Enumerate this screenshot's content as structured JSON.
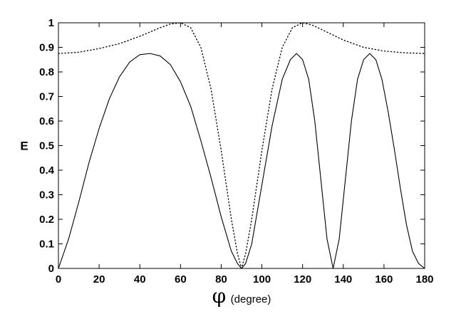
{
  "chart_data": {
    "type": "line",
    "title": "",
    "xlabel": "φ",
    "xlabel_suffix": "(degree)",
    "ylabel": "E",
    "xlim": [
      0,
      180
    ],
    "ylim": [
      0,
      1
    ],
    "xticks": [
      0,
      20,
      40,
      60,
      80,
      100,
      120,
      140,
      160,
      180
    ],
    "xtick_labels": [
      "0",
      "20",
      "40",
      "60",
      "80",
      "100",
      "120",
      "140",
      "160",
      "180"
    ],
    "yticks": [
      0,
      0.1,
      0.2,
      0.3,
      0.4,
      0.5,
      0.6,
      0.7,
      0.8,
      0.9,
      1
    ],
    "ytick_labels": [
      "0",
      "0.1",
      "0.2",
      "0.3",
      "0.4",
      "0.5",
      "0.6",
      "0.7",
      "0.8",
      "0.9",
      "1"
    ],
    "grid": false,
    "series": [
      {
        "style": "solid",
        "color": "#000000",
        "x": [
          0,
          5,
          10,
          15,
          20,
          25,
          30,
          35,
          40,
          45,
          50,
          55,
          60,
          65,
          70,
          75,
          80,
          85,
          88,
          90,
          92,
          95,
          100,
          105,
          110,
          114,
          117,
          120,
          123,
          126,
          129,
          132,
          135,
          138,
          141,
          144,
          147,
          150,
          153,
          156,
          159,
          162,
          165,
          168,
          171,
          174,
          177,
          180
        ],
        "y": [
          0.0,
          0.12,
          0.27,
          0.43,
          0.57,
          0.69,
          0.78,
          0.84,
          0.87,
          0.875,
          0.865,
          0.83,
          0.76,
          0.66,
          0.52,
          0.37,
          0.21,
          0.07,
          0.02,
          0.0,
          0.02,
          0.1,
          0.34,
          0.58,
          0.77,
          0.85,
          0.875,
          0.85,
          0.77,
          0.6,
          0.36,
          0.12,
          0.0,
          0.12,
          0.36,
          0.6,
          0.77,
          0.85,
          0.875,
          0.85,
          0.77,
          0.64,
          0.49,
          0.33,
          0.18,
          0.07,
          0.02,
          0.0
        ]
      },
      {
        "style": "dotted",
        "color": "#000000",
        "x": [
          0,
          10,
          20,
          30,
          40,
          50,
          55,
          60,
          65,
          70,
          75,
          80,
          85,
          88,
          90,
          92,
          95,
          100,
          105,
          110,
          115,
          120,
          125,
          130,
          140,
          150,
          160,
          170,
          180
        ],
        "y": [
          0.875,
          0.88,
          0.895,
          0.915,
          0.945,
          0.98,
          0.995,
          1.0,
          0.98,
          0.9,
          0.73,
          0.48,
          0.2,
          0.06,
          0.0,
          0.06,
          0.2,
          0.48,
          0.73,
          0.9,
          0.98,
          1.0,
          0.99,
          0.97,
          0.93,
          0.9,
          0.885,
          0.878,
          0.875
        ]
      }
    ]
  }
}
